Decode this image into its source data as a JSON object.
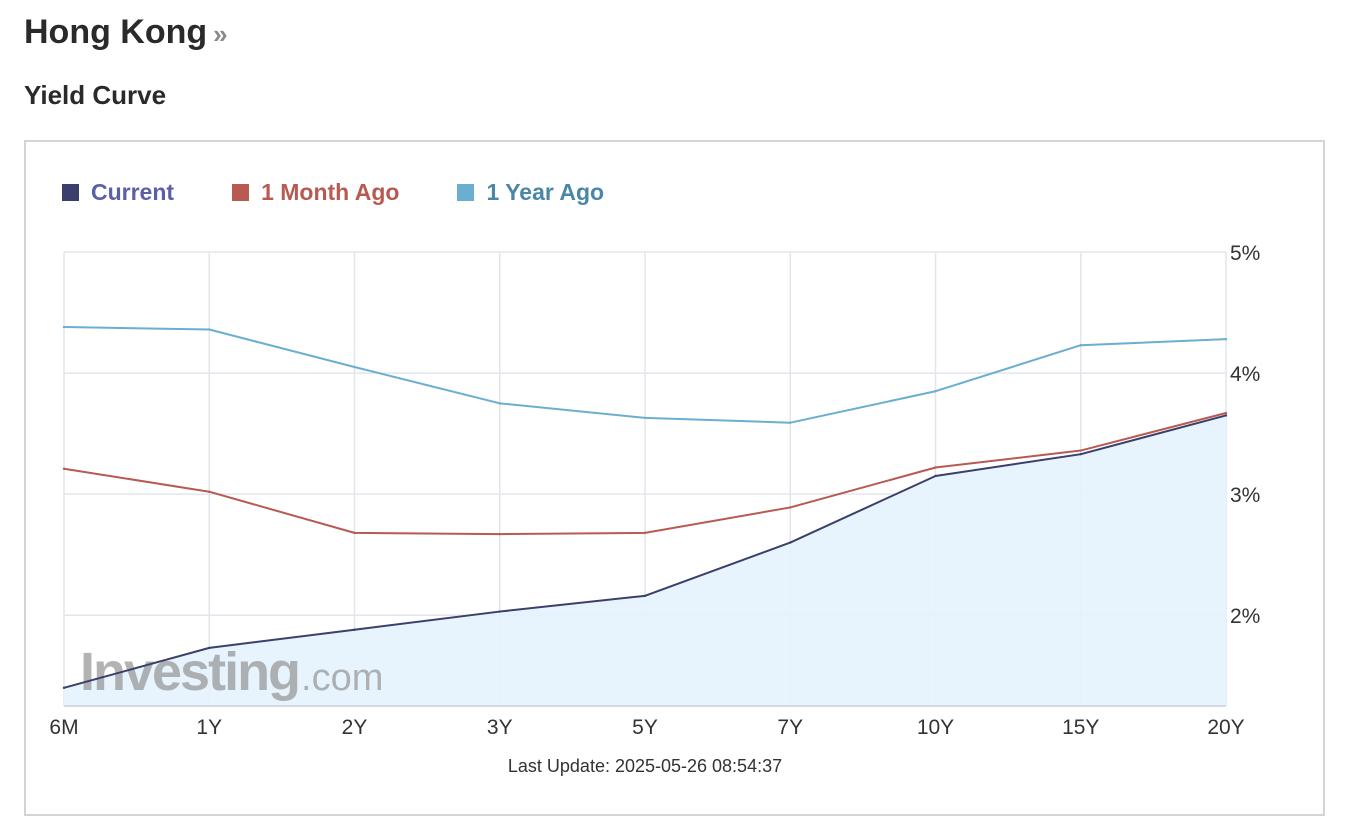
{
  "header": {
    "title": "Hong Kong",
    "title_arrow": "»",
    "section": "Yield Curve"
  },
  "watermark": "Investing.com",
  "last_update": "Last Update: 2025-05-26 08:54:37",
  "colors": {
    "current": "#3a3f6b",
    "current_label": "#5a5fa8",
    "month_ago": "#b85a52",
    "month_ago_label": "#b85a52",
    "year_ago": "#6aaed0",
    "year_ago_label": "#4a86a8",
    "area_fill": "#e6f3fd",
    "grid": "#e2e6ec"
  },
  "chart_data": {
    "type": "line",
    "categories": [
      "6M",
      "1Y",
      "2Y",
      "3Y",
      "5Y",
      "7Y",
      "10Y",
      "15Y",
      "20Y"
    ],
    "ylim": [
      1.25,
      5
    ],
    "yticks": [
      2,
      3,
      4,
      5
    ],
    "ytick_labels": [
      "2%",
      "3%",
      "4%",
      "5%"
    ],
    "grid": true,
    "legend_position": "top-left",
    "series": [
      {
        "name": "Current",
        "key": "current",
        "values": [
          1.4,
          1.73,
          1.88,
          2.03,
          2.16,
          2.6,
          3.15,
          3.33,
          3.65
        ],
        "filled": true
      },
      {
        "name": "1 Month Ago",
        "key": "month_ago",
        "values": [
          3.21,
          3.02,
          2.68,
          2.67,
          2.68,
          2.89,
          3.22,
          3.36,
          3.67
        ],
        "filled": false
      },
      {
        "name": "1 Year Ago",
        "key": "year_ago",
        "values": [
          4.38,
          4.36,
          4.05,
          3.75,
          3.63,
          3.59,
          3.85,
          4.23,
          4.28
        ],
        "filled": false
      }
    ]
  }
}
